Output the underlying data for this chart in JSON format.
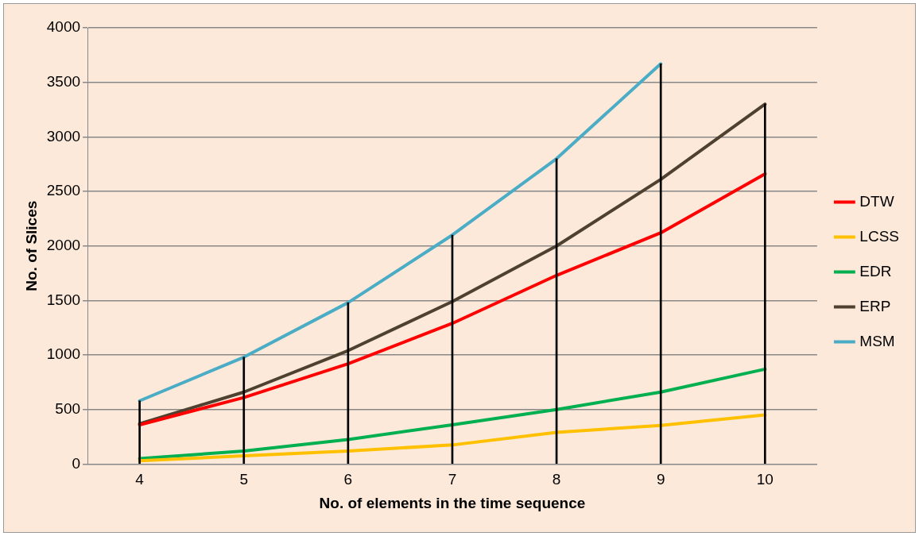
{
  "chart_data": {
    "type": "line",
    "xlabel": "No. of elements in the time sequence",
    "ylabel": "No. of Slices",
    "categories": [
      "4",
      "5",
      "6",
      "7",
      "8",
      "9",
      "10"
    ],
    "series": [
      {
        "name": "DTW",
        "color": "#ff0000",
        "values": [
          360,
          610,
          920,
          1290,
          1730,
          2120,
          2660
        ]
      },
      {
        "name": "LCSS",
        "color": "#ffc000",
        "values": [
          30,
          75,
          120,
          175,
          290,
          355,
          450
        ]
      },
      {
        "name": "EDR",
        "color": "#00b050",
        "values": [
          50,
          120,
          225,
          360,
          500,
          660,
          870
        ]
      },
      {
        "name": "ERP",
        "color": "#4f4130",
        "values": [
          370,
          660,
          1040,
          1490,
          2000,
          2610,
          3300
        ]
      },
      {
        "name": "MSM",
        "color": "#4bacc6",
        "values": [
          580,
          980,
          1480,
          2100,
          2800,
          3670,
          null
        ]
      },
      {
        "type": "bar",
        "color": "#000000",
        "values": [
          580,
          980,
          1480,
          2100,
          2800,
          3670,
          3300
        ]
      }
    ],
    "ylim": [
      0,
      4000
    ],
    "yticks": [
      0,
      500,
      1000,
      1500,
      2000,
      2500,
      3000,
      3500,
      4000
    ],
    "grid": "y",
    "legend": "right",
    "marker": "none",
    "line_style": "solid"
  }
}
